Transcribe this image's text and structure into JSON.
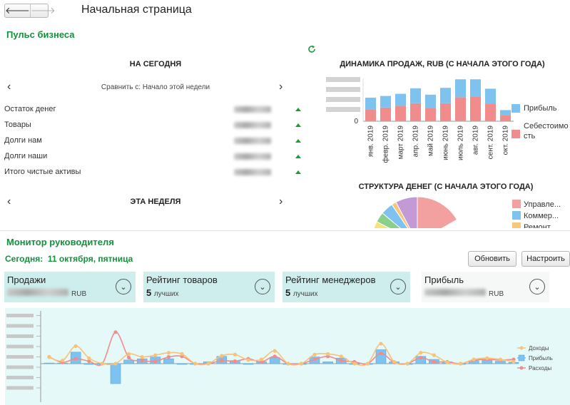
{
  "window": {
    "title": "Начальная страница",
    "back": "🡐",
    "forward": "🡒"
  },
  "pulse": {
    "title": "Пульс бизнеса",
    "today_header": "НА СЕГОДНЯ",
    "compare_text": "Сравнить с: Начало этой недели",
    "rows": [
      {
        "label": "Остаток денег"
      },
      {
        "label": "Товары"
      },
      {
        "label": "Долги нам"
      },
      {
        "label": "Долги наши"
      },
      {
        "label": "Итого чистые активы"
      }
    ],
    "week_header": "ЭТА НЕДЕЛЯ"
  },
  "sales_chart": {
    "title": "ДИНАМИКА ПРОДАЖ, RUB (С НАЧАЛА ЭТОГО ГОДА)",
    "y_zero_label": "0",
    "legend": [
      "Прибыль",
      "Себестоимо\nсть"
    ],
    "colors": {
      "profit": "#7ec3f0",
      "cost": "#f08c8c"
    }
  },
  "money_chart": {
    "title": "СТРУКТУРА ДЕНЕГ (С НАЧАЛА ЭТОГО ГОДА)",
    "legend": [
      {
        "label": "Управле...",
        "color": "#f3a0a0"
      },
      {
        "label": "Коммер...",
        "color": "#7ec3f0"
      },
      {
        "label": "Ремонт",
        "color": "#f7c77a"
      }
    ]
  },
  "monitor": {
    "title": "Монитор руководителя",
    "today_label": "Сегодня:",
    "today_value": "11 октября, пятница",
    "refresh_button": "Обновить",
    "settings_button": "Настроить",
    "cards": [
      {
        "name": "Продажи",
        "value": "",
        "unit": "RUB"
      },
      {
        "name": "Рейтинг товаров",
        "value": "5",
        "unit": "лучших"
      },
      {
        "name": "Рейтинг менеджеров",
        "value": "5",
        "unit": "лучших"
      },
      {
        "name": "Прибыль",
        "value": "",
        "unit": "RUB"
      }
    ],
    "legend": [
      "Доходы",
      "Прибыль",
      "Расходы"
    ],
    "colors": {
      "income": "#f7c27a",
      "profit": "#7ec3f0",
      "expense": "#f08c8c"
    }
  },
  "chart_data": [
    {
      "type": "bar",
      "title": "ДИНАМИКА ПРОДАЖ, RUB (С НАЧАЛА ЭТОГО ГОДА)",
      "categories": [
        "янв. 2019",
        "февр. 2019",
        "март 2019",
        "апр. 2019",
        "май 2019",
        "июнь 2019",
        "июль 2019",
        "авг. 2019",
        "сент. 2019",
        "окт. 2019"
      ],
      "series": [
        {
          "name": "Себестоимость",
          "values": [
            28,
            32,
            36,
            42,
            30,
            42,
            56,
            58,
            40,
            14
          ]
        },
        {
          "name": "Прибыль",
          "values": [
            27,
            27,
            28,
            35,
            32,
            36,
            42,
            40,
            36,
            12
          ]
        }
      ],
      "stacked": true,
      "legend": "right"
    },
    {
      "type": "pie",
      "title": "СТРУКТУРА ДЕНЕГ (С НАЧАЛА ЭТОГО ГОДА)",
      "categories": [
        "Управле...",
        "Коммер...",
        "Ремонт"
      ],
      "values": [
        70,
        10,
        5
      ],
      "legend": "right"
    },
    {
      "type": "line",
      "x": [
        1,
        2,
        3,
        4,
        5,
        6,
        7,
        8,
        9,
        10,
        11,
        12,
        13,
        14,
        15,
        16,
        17,
        18,
        19,
        20,
        21,
        22,
        23,
        24,
        25,
        26,
        27,
        28,
        29,
        30,
        31,
        32,
        33,
        34,
        35,
        36
      ],
      "series": [
        {
          "name": "Доходы",
          "values": [
            0.55,
            0.25,
            1.45,
            0.45,
            0,
            0,
            0.8,
            0.55,
            0.7,
            0.9,
            0.8,
            0,
            0,
            0.65,
            0.75,
            0.3,
            0.35,
            1.05,
            0,
            0,
            0.75,
            0.8,
            0.6,
            0,
            0,
            1.65,
            0.15,
            0,
            0.9,
            0.7,
            0.1,
            0,
            0.35,
            0.45,
            0.35,
            0.15
          ]
        },
        {
          "name": "Прибыль",
          "values": [
            0.05,
            0.05,
            0.95,
            0,
            0,
            -1.65,
            0.3,
            0.4,
            0.55,
            0.4,
            0,
            0,
            0.15,
            0.6,
            0.25,
            0,
            0.15,
            0.5,
            0,
            0,
            0.55,
            0.15,
            0.45,
            -0.05,
            0,
            1.15,
            0.15,
            0,
            0.6,
            0.35,
            0.15,
            0,
            0.25,
            0.3,
            0.2,
            0.1
          ]
        },
        {
          "name": "Расходы",
          "values": [
            0.55,
            0.1,
            0.4,
            0.2,
            0,
            2.6,
            0.5,
            0.25,
            0.2,
            0.55,
            0.6,
            0,
            0,
            0.25,
            0.2,
            0.4,
            0.15,
            0.6,
            0,
            0,
            0.35,
            0.6,
            0.25,
            0.15,
            0,
            0.85,
            0.1,
            0,
            0.5,
            0.15,
            0.15,
            0,
            0.3,
            0.35,
            0.3,
            0.35
          ]
        }
      ],
      "legend": "right"
    }
  ]
}
